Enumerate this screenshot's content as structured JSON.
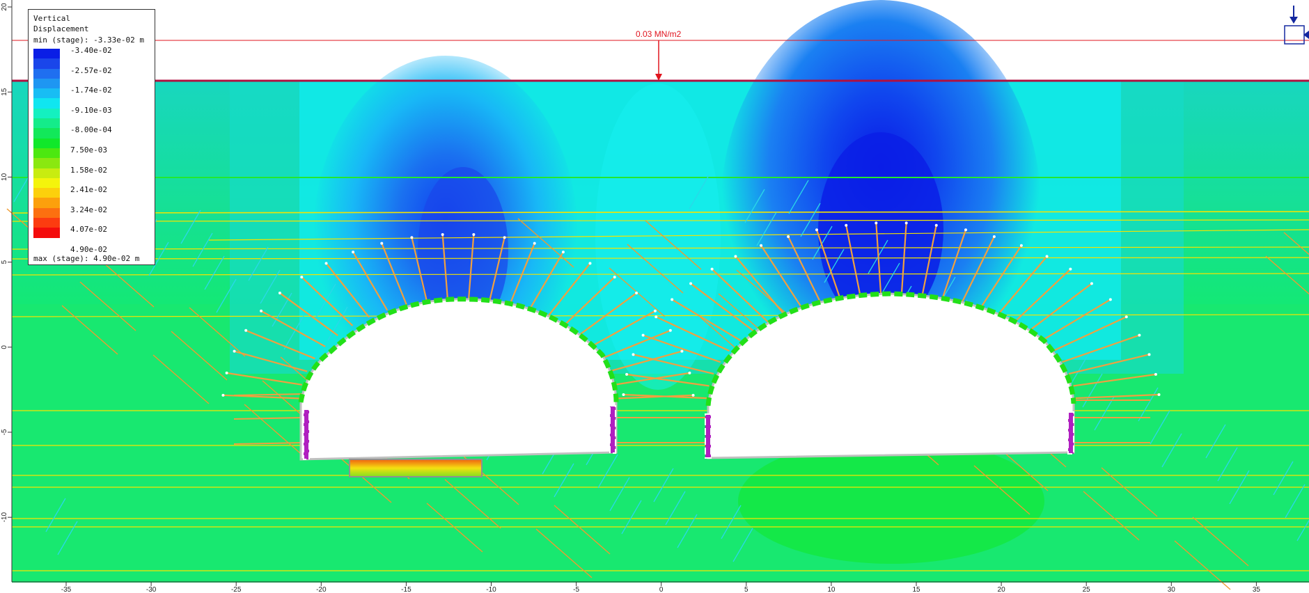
{
  "legend": {
    "title_line1": "Vertical",
    "title_line2": "Displacement",
    "min_text": "min (stage): -3.33e-02 m",
    "max_text": "max (stage): 4.90e-02 m",
    "colors": [
      "#0a1ee6",
      "#1a46ea",
      "#1f6ff0",
      "#1e96f2",
      "#18bdf4",
      "#10e6f0",
      "#14f0c0",
      "#14ec8a",
      "#12e85a",
      "#10e82a",
      "#4ce810",
      "#8ae810",
      "#c8ec10",
      "#f4f40c",
      "#fcd00c",
      "#fca00c",
      "#fc7010",
      "#fc3c10",
      "#f40c0c"
    ],
    "labels": [
      "-3.40e-02",
      "-2.57e-02",
      "-1.74e-02",
      "-9.10e-03",
      "-8.00e-04",
      "7.50e-03",
      "1.58e-02",
      "2.41e-02",
      "3.24e-02",
      "4.07e-02",
      "4.90e-02"
    ]
  },
  "load": {
    "label": "0.03 MN/m2",
    "color": "#e0141e"
  },
  "axes": {
    "x_ticks": [
      "-35",
      "-30",
      "-25",
      "-20",
      "-15",
      "-10",
      "-5",
      "0",
      "5",
      "10",
      "15",
      "20",
      "25",
      "30",
      "35"
    ],
    "y_ticks": [
      "20",
      "15",
      "10",
      "5",
      "0",
      "-5",
      "-10"
    ]
  },
  "colors": {
    "ground": "#10e84a",
    "bolt": "#f0a040",
    "joint": "#f4e400",
    "liner": "#22e018",
    "boundary": "#b01040"
  }
}
